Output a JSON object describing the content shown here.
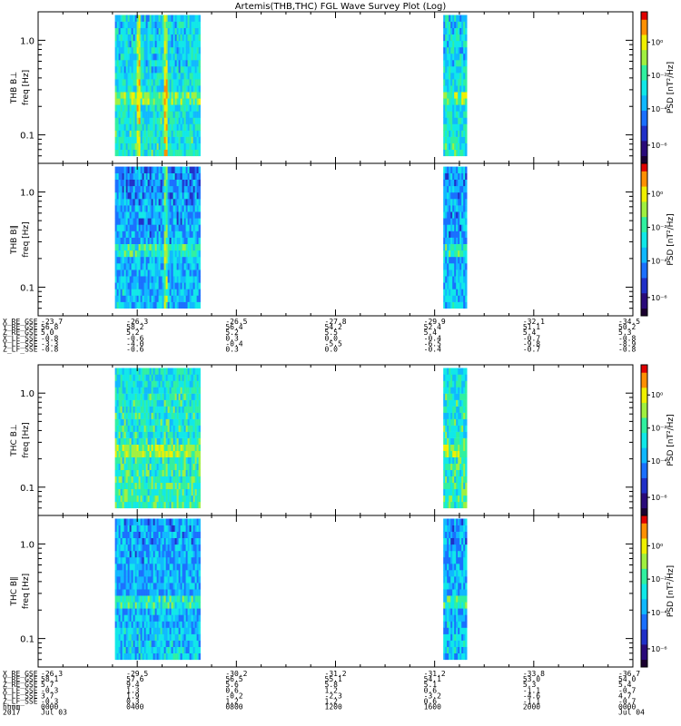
{
  "page": {
    "title": "Artemis(THB,THC) FGL Wave Survey Plot (Log)"
  },
  "colors": {
    "frame": "#000000",
    "colormap": [
      "#1a0030",
      "#2a0a7a",
      "#2030c8",
      "#1a70ff",
      "#10b8ff",
      "#10e8e8",
      "#30f0a0",
      "#a0f040",
      "#f0f000",
      "#ff9000",
      "#e00000"
    ]
  },
  "chart_data": [
    {
      "type": "heatmap",
      "panel_label": "THB B⊥",
      "ylabel": "freq [Hz]",
      "yscale": "log",
      "ylim": [
        0.05,
        2.0
      ],
      "yticks": [
        "1.0",
        "0.1"
      ],
      "colorbar": {
        "label": "PSD [nT²/Hz]",
        "ticks": [
          "10⁰",
          "10⁻²",
          "10⁻⁴",
          "10⁻⁶"
        ],
        "scale": "log"
      },
      "data_intervals_hours": [
        [
          3.1,
          6.5
        ],
        [
          16.35,
          17.25
        ]
      ],
      "peak_features": {
        "enhanced_band_hz": 0.25,
        "vertical_streaks_hours": [
          4.0,
          5.1
        ]
      },
      "mean_log_psd": -3.5
    },
    {
      "type": "heatmap",
      "panel_label": "THB B∥",
      "ylabel": "freq [Hz]",
      "yscale": "log",
      "ylim": [
        0.05,
        2.0
      ],
      "yticks": [
        "1.0",
        "0.1"
      ],
      "colorbar": {
        "label": "PSD [nT²/Hz]",
        "ticks": [
          "10⁰",
          "10⁻²",
          "10⁻⁴",
          "10⁻⁶"
        ],
        "scale": "log"
      },
      "data_intervals_hours": [
        [
          3.1,
          6.5
        ],
        [
          16.35,
          17.25
        ]
      ],
      "peak_features": {
        "enhanced_band_hz": 0.25,
        "vertical_streaks_hours": [
          5.1
        ]
      },
      "mean_log_psd": -4.6
    },
    {
      "type": "heatmap",
      "panel_label": "THC B⊥",
      "ylabel": "freq [Hz]",
      "yscale": "log",
      "ylim": [
        0.05,
        2.0
      ],
      "yticks": [
        "1.0",
        "0.1"
      ],
      "colorbar": {
        "label": "PSD [nT²/Hz]",
        "ticks": [
          "10⁰",
          "10⁻²",
          "10⁻⁴",
          "10⁻⁶"
        ],
        "scale": "log"
      },
      "data_intervals_hours": [
        [
          3.1,
          6.5
        ],
        [
          16.35,
          17.25
        ]
      ],
      "peak_features": {
        "enhanced_band_hz": 0.25,
        "vertical_streaks_hours": []
      },
      "mean_log_psd": -3.0
    },
    {
      "type": "heatmap",
      "panel_label": "THC B∥",
      "ylabel": "freq [Hz]",
      "yscale": "log",
      "ylim": [
        0.05,
        2.0
      ],
      "yticks": [
        "1.0",
        "0.1"
      ],
      "colorbar": {
        "label": "PSD [nT²/Hz]",
        "ticks": [
          "10⁰",
          "10⁻²",
          "10⁻⁴",
          "10⁻⁶"
        ],
        "scale": "log"
      },
      "data_intervals_hours": [
        [
          3.1,
          6.5
        ],
        [
          16.35,
          17.25
        ]
      ],
      "peak_features": {
        "enhanced_band_hz": 0.25,
        "vertical_streaks_hours": []
      },
      "mean_log_psd": -4.4
    }
  ],
  "ephemeris_thb": {
    "labels": [
      "X_RE_GSE",
      "Y_RE_GSE",
      "Z_RE_GSE",
      "X_LF_SSE",
      "Y_LF_SSE",
      "Z_LF_SSE"
    ],
    "first_column": [
      "-23.7",
      "56.8",
      "5.0",
      "-0.8",
      "-3.3",
      "-0.8"
    ],
    "columns": [
      [
        "-26.3",
        "58.2",
        "5.2",
        "-0.6",
        "-4.0",
        "-0.6"
      ],
      [
        "-26.5",
        "56.4",
        "5.2",
        "0.3",
        "-0.4",
        "0.3"
      ],
      [
        "-27.8",
        "54.2",
        "5.5",
        "0.0",
        "-5.5",
        "0.0"
      ],
      [
        "-29.9",
        "52.4",
        "5.4",
        "-0.4",
        "-6.5",
        "-0.4"
      ],
      [
        "-32.1",
        "51.1",
        "5.4",
        "-0.7",
        "-9.8",
        "-0.7"
      ],
      [
        "-34.5",
        "50.2",
        "5.3",
        "-0.8",
        "-8.9",
        "-0.8"
      ]
    ]
  },
  "ephemeris_thc": {
    "labels": [
      "X_RE_GSE",
      "Y_RE_GSE",
      "Z_RE_GSE",
      "X_LF_SSE",
      "Y_LF_SSE",
      "Z_LF_SSE",
      "hhmm",
      "2017"
    ],
    "first_column": [
      "-26.3",
      "58.1",
      "5.7",
      "-0.3",
      "3.7",
      "-0.3",
      "0000",
      "Jul 03"
    ],
    "columns": [
      [
        "-29.5",
        "57.6",
        "9.4",
        "1.3",
        "1.9",
        "0.3",
        "0400",
        ""
      ],
      [
        "-30.2",
        "56.5",
        "5.6",
        "0.6",
        "-0.2",
        "1.2",
        "0800",
        ""
      ],
      [
        "-31.2",
        "55.1",
        "5.8",
        "1.2",
        "-2.3",
        "1.2",
        "1200",
        ""
      ],
      [
        "-31.2",
        "54.1",
        "5.1",
        "0.6",
        "-3.2",
        "0.6",
        "1600",
        ""
      ],
      [
        "-33.8",
        "53.0",
        "5.3",
        "-1.1",
        "-4.6",
        "-1.1",
        "2000",
        ""
      ],
      [
        "-36.7",
        "54.0",
        "5.4",
        "-0.7",
        "4.7",
        "-0.7",
        "0000",
        "Jul 04"
      ]
    ]
  }
}
